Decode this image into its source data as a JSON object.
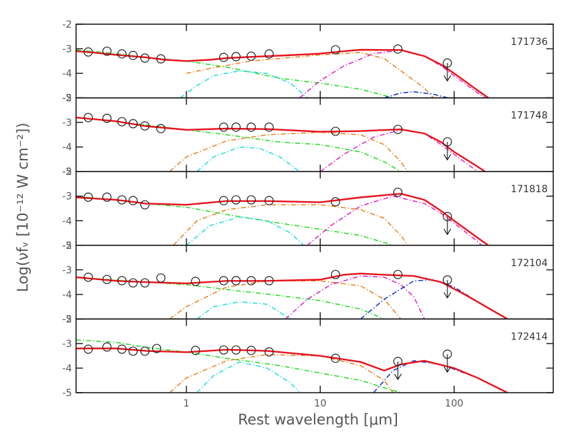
{
  "xlabel": "Rest wavelength [μm]",
  "ylabel": "Log(νfᵥ [10⁻¹² W cm⁻²])",
  "chart_data": [
    {
      "type": "line",
      "label": "171736",
      "xscale": "log",
      "xlim": [
        0.15,
        550
      ],
      "ylim": [
        -5,
        -2
      ],
      "xticks": [
        1,
        10,
        100
      ],
      "yticks": [
        -5,
        -4,
        -3,
        -2
      ],
      "series": [
        {
          "color": "#22dd22",
          "x": [
            0.15,
            0.3,
            0.5,
            1,
            2,
            3,
            5,
            10,
            20,
            30,
            35
          ],
          "values": [
            -3.05,
            -3.2,
            -3.35,
            -3.5,
            -3.75,
            -3.95,
            -4.2,
            -4.4,
            -4.65,
            -4.9,
            -5.0
          ]
        },
        {
          "color": "#e8801e",
          "x": [
            1.0,
            1.5,
            3,
            10,
            20,
            30,
            40,
            60,
            70
          ],
          "values": [
            -4.0,
            -3.8,
            -3.5,
            -3.25,
            -3.15,
            -3.4,
            -3.9,
            -4.6,
            -5.0
          ]
        },
        {
          "color": "#22dddd",
          "x": [
            0.9,
            1.2,
            1.6,
            2.5,
            4,
            6,
            8
          ],
          "values": [
            -5.0,
            -4.5,
            -4.1,
            -3.9,
            -4.0,
            -4.4,
            -5.0
          ]
        },
        {
          "color": "#e020c0",
          "x": [
            7,
            10,
            15,
            25,
            40,
            60,
            80,
            100,
            150,
            170
          ],
          "values": [
            -5.0,
            -4.3,
            -3.7,
            -3.2,
            -3.05,
            -3.3,
            -3.7,
            -4.1,
            -4.8,
            -5.0
          ]
        },
        {
          "color": "#1030d0",
          "x": [
            30,
            40,
            50,
            70,
            90
          ],
          "values": [
            -5.0,
            -4.8,
            -4.75,
            -4.85,
            -5.0
          ]
        },
        {
          "color": "#e8141e",
          "x": [
            0.15,
            0.2,
            0.3,
            0.5,
            0.7,
            1.0,
            1.5,
            2,
            3,
            5,
            10,
            15,
            20,
            30,
            40,
            60,
            80,
            100,
            150,
            180
          ],
          "values": [
            -3.1,
            -3.15,
            -3.25,
            -3.35,
            -3.45,
            -3.5,
            -3.45,
            -3.38,
            -3.33,
            -3.28,
            -3.2,
            -3.1,
            -3.04,
            -3.05,
            -3.05,
            -3.3,
            -3.65,
            -4.0,
            -4.7,
            -5.0
          ]
        }
      ],
      "points": {
        "x": [
          0.185,
          0.255,
          0.33,
          0.4,
          0.49,
          0.645,
          1.9,
          2.35,
          3.05,
          4.15,
          13,
          38
        ],
        "y": [
          -3.13,
          -3.1,
          -3.21,
          -3.27,
          -3.38,
          -3.41,
          -3.35,
          -3.32,
          -3.3,
          -3.21,
          -3.04,
          -3.01
        ]
      },
      "upper_limits": {
        "x": [
          89
        ],
        "y": [
          -3.58
        ]
      }
    },
    {
      "type": "line",
      "label": "171748",
      "xscale": "log",
      "xlim": [
        0.15,
        550
      ],
      "ylim": [
        -5,
        -2
      ],
      "xticks": [
        1,
        10,
        100
      ],
      "yticks": [
        -5,
        -4,
        -3,
        -2
      ],
      "series": [
        {
          "color": "#22dd22",
          "x": [
            0.15,
            0.5,
            1,
            2,
            5,
            10,
            20,
            30,
            40
          ],
          "values": [
            -2.8,
            -3.1,
            -3.3,
            -3.5,
            -3.8,
            -3.9,
            -4.2,
            -4.6,
            -5.0
          ]
        },
        {
          "color": "#e8801e",
          "x": [
            0.75,
            1,
            2,
            4,
            10,
            20,
            30,
            40,
            45
          ],
          "values": [
            -5.0,
            -4.4,
            -3.75,
            -3.5,
            -3.4,
            -3.5,
            -3.9,
            -4.6,
            -5.0
          ]
        },
        {
          "color": "#22dddd",
          "x": [
            1.2,
            1.6,
            2.5,
            3.5,
            5,
            7
          ],
          "values": [
            -5.0,
            -4.4,
            -4.0,
            -4.05,
            -4.4,
            -5.0
          ]
        },
        {
          "color": "#e020c0",
          "x": [
            10,
            15,
            25,
            40,
            60,
            80,
            100,
            150
          ],
          "values": [
            -5.0,
            -4.3,
            -3.6,
            -3.3,
            -3.45,
            -3.9,
            -4.3,
            -5.0
          ]
        },
        {
          "color": "#e8141e",
          "x": [
            0.15,
            0.3,
            0.5,
            1,
            2,
            4,
            10,
            20,
            40,
            60,
            80,
            100,
            150,
            170
          ],
          "values": [
            -2.8,
            -2.95,
            -3.15,
            -3.3,
            -3.25,
            -3.27,
            -3.38,
            -3.35,
            -3.28,
            -3.45,
            -3.8,
            -4.2,
            -4.8,
            -5.0
          ]
        }
      ],
      "points": {
        "x": [
          0.185,
          0.255,
          0.33,
          0.4,
          0.49,
          0.645,
          1.9,
          2.35,
          3.05,
          4.15,
          13,
          38
        ],
        "y": [
          -2.8,
          -2.83,
          -2.97,
          -3.05,
          -3.14,
          -3.25,
          -3.19,
          -3.19,
          -3.19,
          -3.19,
          -3.36,
          -3.28
        ]
      },
      "upper_limits": {
        "x": [
          89
        ],
        "y": [
          -3.79
        ]
      }
    },
    {
      "type": "line",
      "label": "171818",
      "xscale": "log",
      "xlim": [
        0.15,
        550
      ],
      "ylim": [
        -5,
        -2
      ],
      "xticks": [
        1,
        10,
        100
      ],
      "yticks": [
        -5,
        -4,
        -3,
        -2
      ],
      "series": [
        {
          "color": "#22dd22",
          "x": [
            0.15,
            0.5,
            1,
            2,
            5,
            10,
            20,
            35
          ],
          "values": [
            -3.0,
            -3.3,
            -3.45,
            -3.75,
            -4.1,
            -4.35,
            -4.6,
            -5.0
          ]
        },
        {
          "color": "#e8801e",
          "x": [
            0.8,
            1.2,
            2,
            4,
            10,
            20,
            30,
            40,
            45
          ],
          "values": [
            -5.0,
            -4.0,
            -3.55,
            -3.35,
            -3.35,
            -3.55,
            -3.9,
            -4.6,
            -5.0
          ]
        },
        {
          "color": "#22dddd",
          "x": [
            1,
            1.5,
            2.5,
            4,
            6,
            7.5
          ],
          "values": [
            -5.0,
            -4.2,
            -3.85,
            -4.0,
            -4.5,
            -5.0
          ]
        },
        {
          "color": "#e020c0",
          "x": [
            8,
            12,
            20,
            35,
            60,
            80,
            100,
            150,
            160
          ],
          "values": [
            -5.0,
            -4.2,
            -3.4,
            -3.0,
            -3.3,
            -3.7,
            -4.1,
            -4.85,
            -5.0
          ]
        },
        {
          "color": "#e8141e",
          "x": [
            0.15,
            0.3,
            0.5,
            1,
            2,
            4,
            10,
            20,
            40,
            60,
            80,
            100,
            150,
            180
          ],
          "values": [
            -3.05,
            -3.15,
            -3.3,
            -3.35,
            -3.2,
            -3.2,
            -3.25,
            -3.05,
            -2.9,
            -3.15,
            -3.6,
            -4.0,
            -4.7,
            -5.0
          ]
        }
      ],
      "points": {
        "x": [
          0.185,
          0.255,
          0.33,
          0.4,
          0.49,
          1.9,
          2.35,
          3.05,
          4.15,
          13,
          38
        ],
        "y": [
          -3.04,
          -3.04,
          -3.15,
          -3.18,
          -3.35,
          -3.18,
          -3.15,
          -3.15,
          -3.18,
          -3.23,
          -2.84
        ]
      },
      "upper_limits": {
        "x": [
          89
        ],
        "y": [
          -3.83
        ]
      }
    },
    {
      "type": "line",
      "label": "172104",
      "xscale": "log",
      "xlim": [
        0.15,
        550
      ],
      "ylim": [
        -5,
        -2
      ],
      "xticks": [
        1,
        10,
        100
      ],
      "yticks": [
        -5,
        -4,
        -3,
        -2
      ],
      "series": [
        {
          "color": "#22dd22",
          "x": [
            0.15,
            0.5,
            1,
            2,
            5,
            10,
            20,
            30
          ],
          "values": [
            -3.3,
            -3.5,
            -3.6,
            -3.8,
            -4.05,
            -4.25,
            -4.6,
            -5.0
          ]
        },
        {
          "color": "#e8801e",
          "x": [
            0.75,
            1,
            2,
            4,
            10,
            20,
            30,
            40
          ],
          "values": [
            -5.0,
            -4.5,
            -3.7,
            -3.45,
            -3.45,
            -3.65,
            -4.2,
            -5.0
          ]
        },
        {
          "color": "#22dddd",
          "x": [
            1.2,
            1.6,
            2.5,
            4,
            6
          ],
          "values": [
            -5.0,
            -4.5,
            -4.3,
            -4.4,
            -5.0
          ]
        },
        {
          "color": "#e020c0",
          "x": [
            5.5,
            8,
            12,
            20,
            30,
            40,
            50,
            60
          ],
          "values": [
            -5.0,
            -4.2,
            -3.6,
            -3.25,
            -3.3,
            -3.6,
            -4.1,
            -5.0
          ]
        },
        {
          "color": "#1030d0",
          "x": [
            20,
            30,
            50,
            70,
            100,
            150,
            250
          ],
          "values": [
            -5.0,
            -4.2,
            -3.45,
            -3.4,
            -3.7,
            -4.3,
            -5.0
          ]
        },
        {
          "color": "#e8141e",
          "x": [
            0.15,
            0.3,
            0.5,
            1,
            2,
            4,
            10,
            15,
            20,
            30,
            50,
            80,
            120,
            200,
            250
          ],
          "values": [
            -3.3,
            -3.45,
            -3.5,
            -3.55,
            -3.45,
            -3.45,
            -3.4,
            -3.2,
            -3.15,
            -3.2,
            -3.25,
            -3.5,
            -4.0,
            -4.7,
            -5.0
          ]
        }
      ],
      "points": {
        "x": [
          0.185,
          0.255,
          0.33,
          0.4,
          0.49,
          0.645,
          1.17,
          1.9,
          2.35,
          3.05,
          4.15,
          13,
          38
        ],
        "y": [
          -3.3,
          -3.39,
          -3.44,
          -3.53,
          -3.53,
          -3.33,
          -3.47,
          -3.44,
          -3.44,
          -3.44,
          -3.44,
          -3.19,
          -3.19
        ]
      },
      "upper_limits": {
        "x": [
          89
        ],
        "y": [
          -3.41
        ]
      }
    },
    {
      "type": "line",
      "label": "172414",
      "xscale": "log",
      "xlim": [
        0.15,
        550
      ],
      "ylim": [
        -5,
        -2
      ],
      "xticks": [
        1,
        10,
        100
      ],
      "yticks": [
        -5,
        -4,
        -3,
        -2
      ],
      "series": [
        {
          "color": "#22dd22",
          "x": [
            0.15,
            0.3,
            0.5,
            1,
            2,
            5,
            10,
            20,
            30,
            40
          ],
          "values": [
            -2.85,
            -2.95,
            -3.15,
            -3.35,
            -3.6,
            -3.9,
            -4.2,
            -4.5,
            -4.8,
            -5.0
          ]
        },
        {
          "color": "#e8801e",
          "x": [
            0.75,
            1,
            2,
            4,
            10,
            20,
            30,
            35
          ],
          "values": [
            -5.0,
            -4.4,
            -3.7,
            -3.45,
            -3.5,
            -3.9,
            -4.5,
            -5.0
          ]
        },
        {
          "color": "#22dddd",
          "x": [
            1.2,
            1.6,
            2.5,
            4,
            6,
            7
          ],
          "values": [
            -5.0,
            -4.3,
            -3.75,
            -4.0,
            -4.6,
            -5.0
          ]
        },
        {
          "color": "#1030d0",
          "x": [
            25,
            35,
            50,
            80,
            150,
            250
          ],
          "values": [
            -5.0,
            -4.1,
            -3.7,
            -3.85,
            -4.4,
            -5.0
          ]
        },
        {
          "color": "#e8141e",
          "x": [
            0.15,
            0.3,
            0.5,
            1,
            2,
            4,
            10,
            20,
            30,
            40,
            60,
            100,
            150,
            250
          ],
          "values": [
            -3.2,
            -3.2,
            -3.3,
            -3.35,
            -3.25,
            -3.3,
            -3.5,
            -3.75,
            -4.1,
            -3.85,
            -3.7,
            -4.0,
            -4.4,
            -5.0
          ]
        }
      ],
      "points": {
        "x": [
          0.185,
          0.255,
          0.33,
          0.4,
          0.49,
          0.6,
          1.17,
          1.9,
          2.35,
          3.05,
          4.15,
          13
        ],
        "y": [
          -3.23,
          -3.14,
          -3.23,
          -3.31,
          -3.31,
          -3.2,
          -3.28,
          -3.26,
          -3.26,
          -3.28,
          -3.34,
          -3.6
        ]
      },
      "upper_limits": {
        "x": [
          38,
          89
        ],
        "y": [
          -3.73,
          -3.43
        ]
      }
    }
  ]
}
